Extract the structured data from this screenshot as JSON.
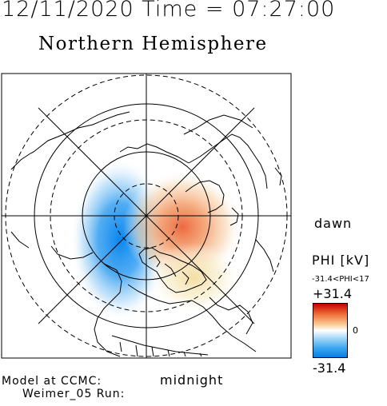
{
  "header": {
    "datetime": "12/11/2020 Time = 07:27:00"
  },
  "plot": {
    "title": "Northern Hemisphere"
  },
  "labels": {
    "dawn": "dawn",
    "midnight": "midnight"
  },
  "colorbar": {
    "quantity": "PHI [kV]",
    "range_text": "-31.4<PHI<17",
    "max_label": "+31.4",
    "zero_label": "0",
    "min_label": "-31.4",
    "colors": {
      "high": "#c80000",
      "mid": "#ffffff",
      "low": "#0080e8"
    }
  },
  "footer": {
    "model": "Model at CCMC:",
    "run": "Weimer_05 Run:"
  }
}
